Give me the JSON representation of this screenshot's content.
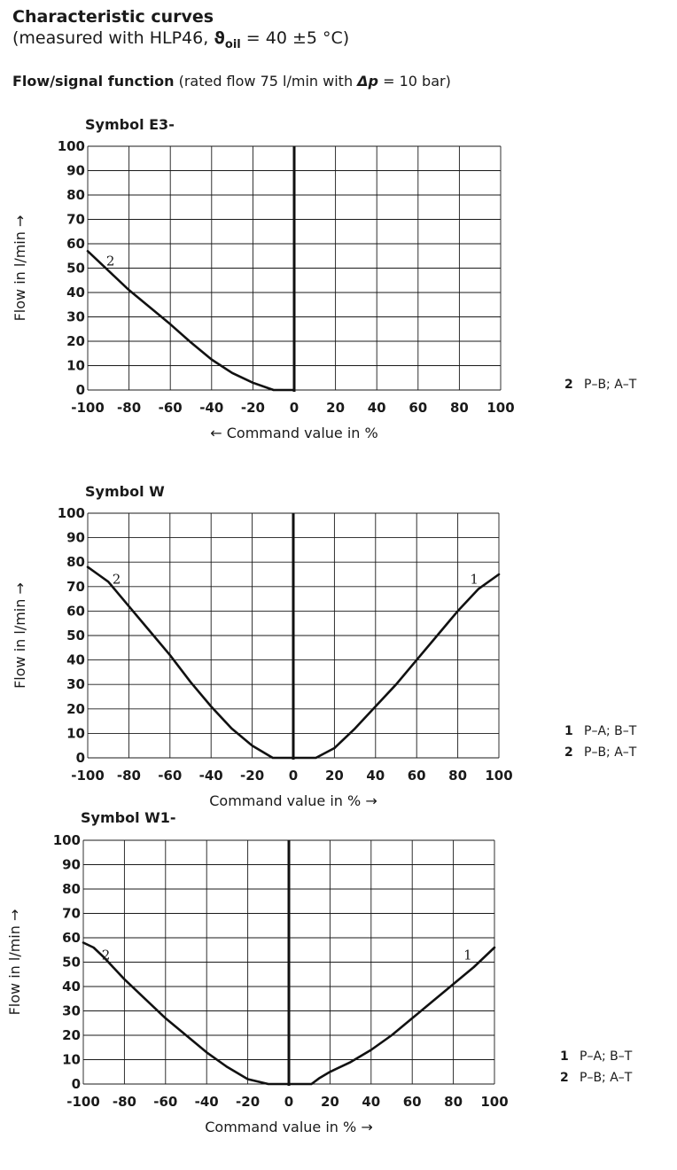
{
  "page": {
    "title": "Characteristic curves",
    "subtitle_prefix": "(measured with HLP46, ",
    "subtitle_symbol": "ϑ",
    "subtitle_sub": "oil",
    "subtitle_suffix": " = 40 ±5 °C)",
    "section_bold": "Flow/signal function",
    "section_prefix": " (rated flow 75 l/min with ",
    "section_dp": "Δp",
    "section_suffix": " = 10 bar)"
  },
  "chart_data": [
    {
      "type": "line",
      "title": "Symbol E3-",
      "xlabel": "← Command value in %",
      "ylabel": "Flow in l/min →",
      "xlim": [
        -100,
        100
      ],
      "ylim": [
        0,
        100
      ],
      "x_ticks": [
        "-100",
        "-80",
        "-60",
        "-40",
        "-20",
        "0",
        "20",
        "40",
        "60",
        "80",
        "100"
      ],
      "y_ticks": [
        "0",
        "10",
        "20",
        "30",
        "40",
        "50",
        "60",
        "70",
        "80",
        "90",
        "100"
      ],
      "grid": true,
      "series": [
        {
          "name": "2",
          "x": [
            -100,
            -90,
            -80,
            -70,
            -60,
            -50,
            -40,
            -30,
            -20,
            -10,
            -5,
            0
          ],
          "y": [
            57,
            49,
            41,
            34,
            27,
            19.5,
            12.5,
            7,
            3,
            0,
            0,
            0
          ]
        }
      ],
      "legend": [
        {
          "num": "2",
          "text": "P–B; A–T"
        }
      ]
    },
    {
      "type": "line",
      "title": "Symbol W",
      "xlabel": "Command value in % →",
      "ylabel": "Flow in l/min →",
      "xlim": [
        -100,
        100
      ],
      "ylim": [
        0,
        100
      ],
      "x_ticks": [
        "-100",
        "-80",
        "-60",
        "-40",
        "-20",
        "0",
        "20",
        "40",
        "60",
        "80",
        "100"
      ],
      "y_ticks": [
        "0",
        "10",
        "20",
        "30",
        "40",
        "50",
        "60",
        "70",
        "80",
        "90",
        "100"
      ],
      "grid": true,
      "series": [
        {
          "name": "1",
          "x": [
            0,
            5,
            11,
            20,
            30,
            40,
            50,
            60,
            70,
            80,
            90,
            100
          ],
          "y": [
            0,
            0,
            0,
            4,
            12,
            21,
            30,
            40,
            50,
            60,
            69,
            75
          ]
        },
        {
          "name": "2",
          "x": [
            -100,
            -95,
            -90,
            -80,
            -70,
            -60,
            -50,
            -40,
            -30,
            -20,
            -10,
            -5,
            0
          ],
          "y": [
            78,
            75,
            72,
            62,
            52,
            42,
            31,
            21,
            12,
            5,
            0,
            0,
            0
          ]
        }
      ],
      "legend": [
        {
          "num": "1",
          "text": "P–A; B–T"
        },
        {
          "num": "2",
          "text": "P–B; A–T"
        }
      ]
    },
    {
      "type": "line",
      "title": "Symbol W1-",
      "xlabel": "Command value in % →",
      "ylabel": "Flow in l/min →",
      "xlim": [
        -100,
        100
      ],
      "ylim": [
        0,
        100
      ],
      "x_ticks": [
        "-100",
        "-80",
        "-60",
        "-40",
        "-20",
        "0",
        "20",
        "40",
        "60",
        "80",
        "100"
      ],
      "y_ticks": [
        "0",
        "10",
        "20",
        "30",
        "40",
        "50",
        "60",
        "70",
        "80",
        "90",
        "100"
      ],
      "grid": true,
      "series": [
        {
          "name": "1",
          "x": [
            0,
            5,
            11,
            15,
            20,
            30,
            40,
            50,
            60,
            70,
            80,
            90,
            100
          ],
          "y": [
            0,
            0,
            0,
            2.5,
            5,
            9,
            14,
            20,
            27,
            34,
            41,
            48,
            56
          ]
        },
        {
          "name": "2",
          "x": [
            -100,
            -95,
            -90,
            -80,
            -70,
            -60,
            -50,
            -40,
            -30,
            -20,
            -10,
            -5,
            0
          ],
          "y": [
            58,
            56,
            52,
            43,
            35,
            27,
            20,
            13,
            7,
            2,
            0,
            0,
            0
          ]
        }
      ],
      "legend": [
        {
          "num": "1",
          "text": "P–A; B–T"
        },
        {
          "num": "2",
          "text": "P–B; A–T"
        }
      ]
    }
  ]
}
